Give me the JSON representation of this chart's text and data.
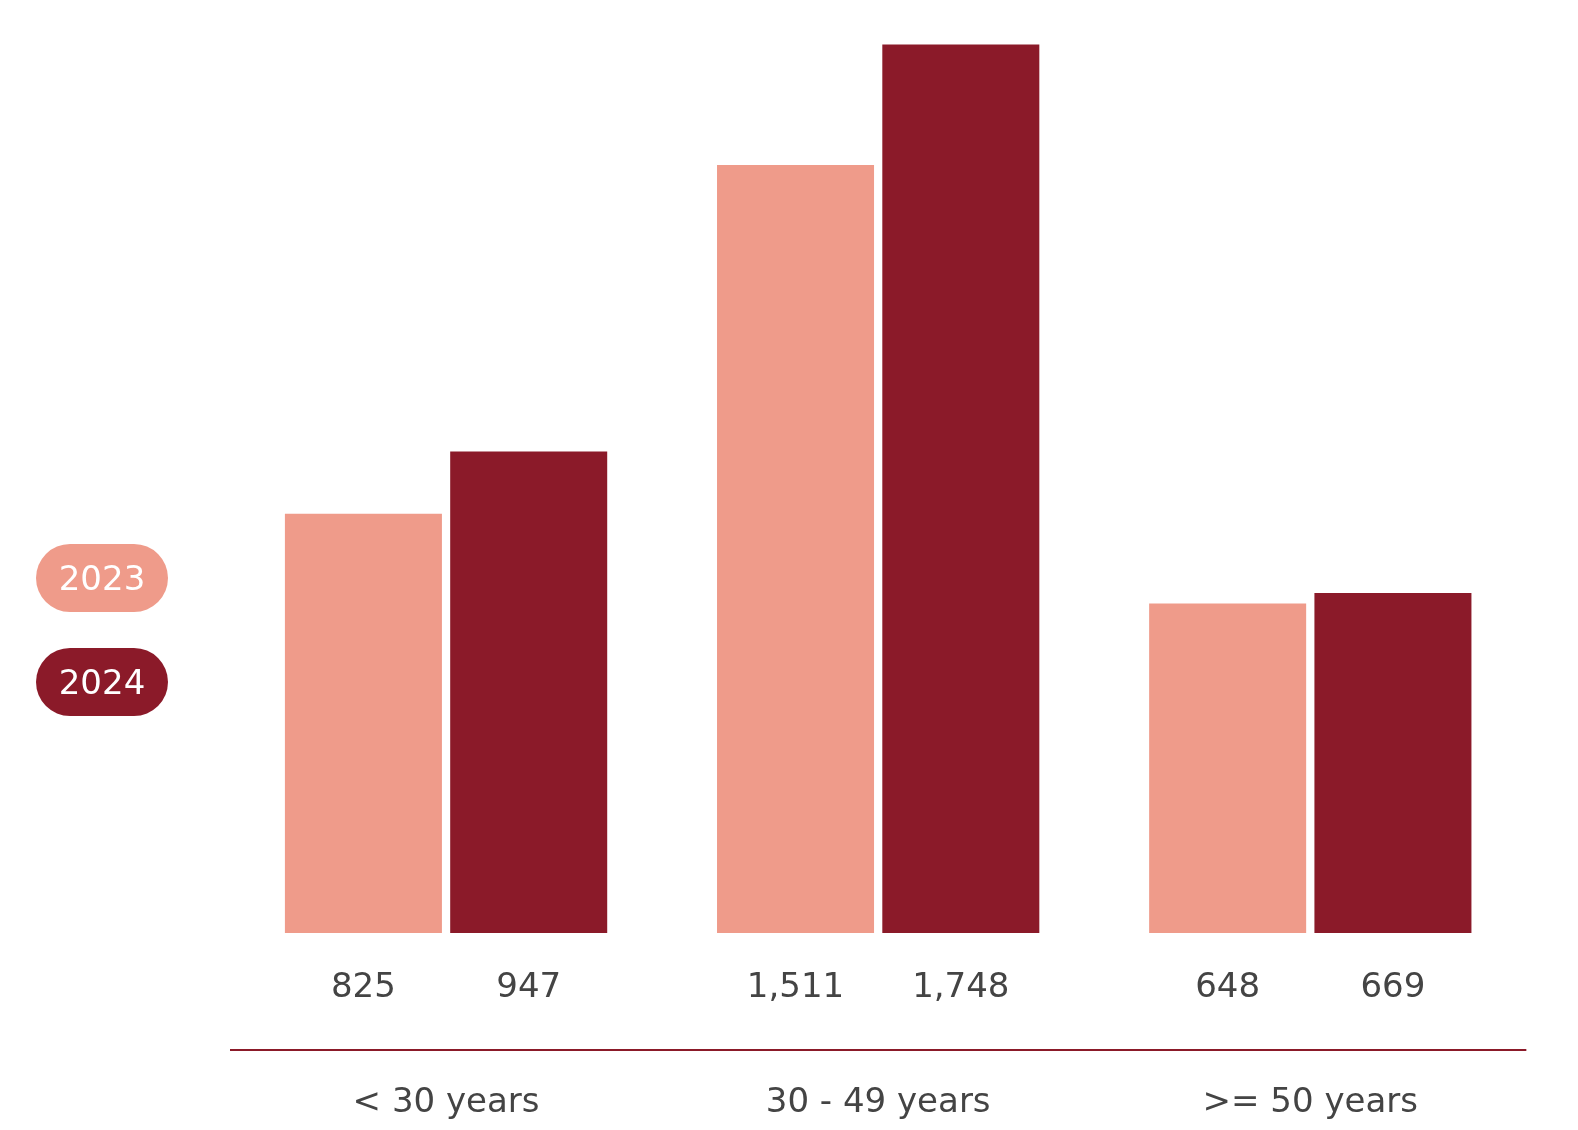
{
  "chart_data": {
    "type": "bar",
    "categories": [
      "< 30 years",
      "30 - 49 years",
      ">= 50 years"
    ],
    "series": [
      {
        "name": "2023",
        "color": "#ef9b8a",
        "values": [
          825,
          1511,
          648
        ],
        "value_labels": [
          "825",
          "1,511",
          "648"
        ]
      },
      {
        "name": "2024",
        "color": "#8b1a29",
        "values": [
          947,
          1748,
          669
        ],
        "value_labels": [
          "947",
          "1,748",
          "669"
        ]
      }
    ],
    "legend": "left",
    "grid": false
  }
}
